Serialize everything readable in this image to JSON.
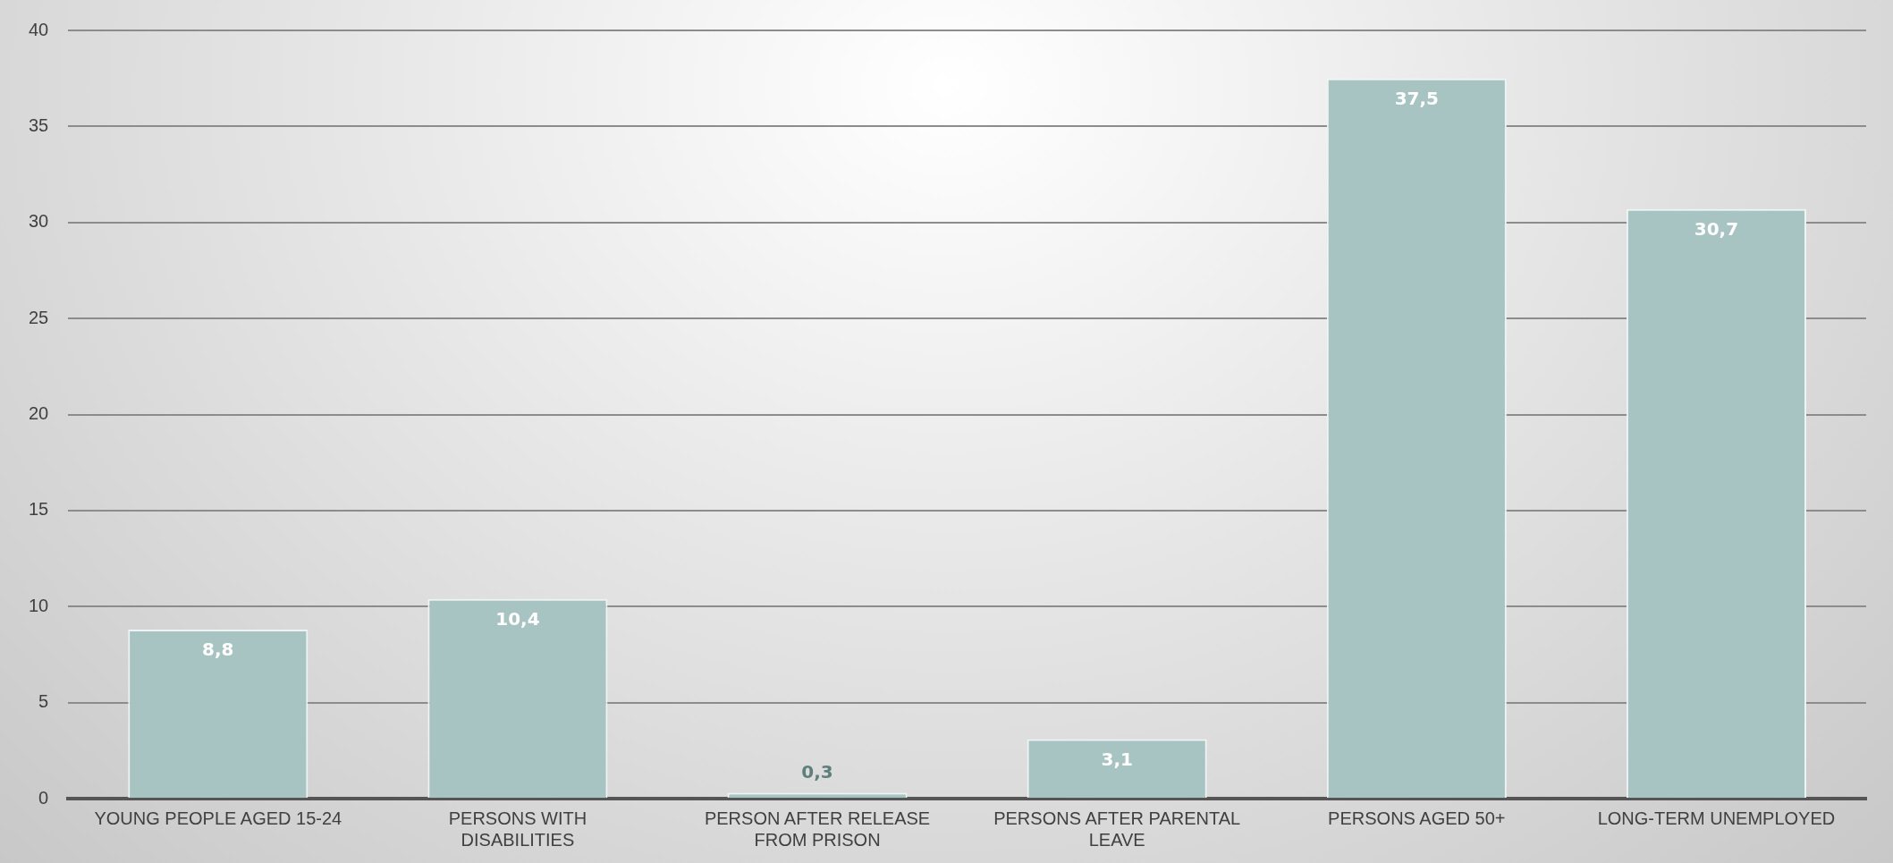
{
  "chart_data": {
    "type": "bar",
    "categories": [
      "YOUNG PEOPLE AGED 15-24",
      "PERSONS WITH DISABILITIES",
      "PERSON AFTER RELEASE FROM PRISON",
      "PERSONS AFTER PARENTAL LEAVE",
      "PERSONS AGED 50+",
      "LONG-TERM UNEMPLOYED"
    ],
    "values": [
      8.8,
      10.4,
      0.3,
      3.1,
      37.5,
      30.7
    ],
    "value_labels": [
      "8,8",
      "10,4",
      "0,3",
      "3,1",
      "37,5",
      "30,7"
    ],
    "color": "#a7c4c2",
    "ylim": [
      0,
      40
    ],
    "yticks": [
      0,
      5,
      10,
      15,
      20,
      25,
      30,
      35,
      40
    ],
    "grid": "y",
    "legend": false
  }
}
